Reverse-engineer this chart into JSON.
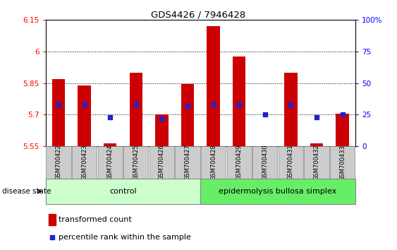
{
  "title": "GDS4426 / 7946428",
  "samples": [
    "GSM700422",
    "GSM700423",
    "GSM700424",
    "GSM700425",
    "GSM700426",
    "GSM700427",
    "GSM700428",
    "GSM700429",
    "GSM700430",
    "GSM700431",
    "GSM700432",
    "GSM700433"
  ],
  "transformed_count": [
    5.87,
    5.84,
    5.565,
    5.9,
    5.7,
    5.845,
    6.12,
    5.975,
    5.55,
    5.9,
    5.565,
    5.705
  ],
  "percentile_rank": [
    33,
    33,
    23,
    33,
    22,
    32,
    33,
    33,
    25,
    33,
    23,
    25
  ],
  "ylim_left": [
    5.55,
    6.15
  ],
  "ylim_right": [
    0,
    100
  ],
  "yticks_left": [
    5.55,
    5.7,
    5.85,
    6.0,
    6.15
  ],
  "yticks_right": [
    0,
    25,
    50,
    75,
    100
  ],
  "ytick_labels_left": [
    "5.55",
    "5.7",
    "5.85",
    "6",
    "6.15"
  ],
  "ytick_labels_right": [
    "0",
    "25",
    "50",
    "75",
    "100%"
  ],
  "bar_color": "#cc0000",
  "marker_color": "#2222cc",
  "base_value": 5.55,
  "control_samples": 6,
  "control_label": "control",
  "disease_label": "epidermolysis bullosa simplex",
  "disease_state_label": "disease state",
  "legend_bar_label": "transformed count",
  "legend_marker_label": "percentile rank within the sample",
  "control_bg": "#ccffcc",
  "disease_bg": "#66ee66",
  "sample_bg": "#cccccc",
  "dotted_yticks": [
    5.7,
    5.85,
    6.0
  ]
}
